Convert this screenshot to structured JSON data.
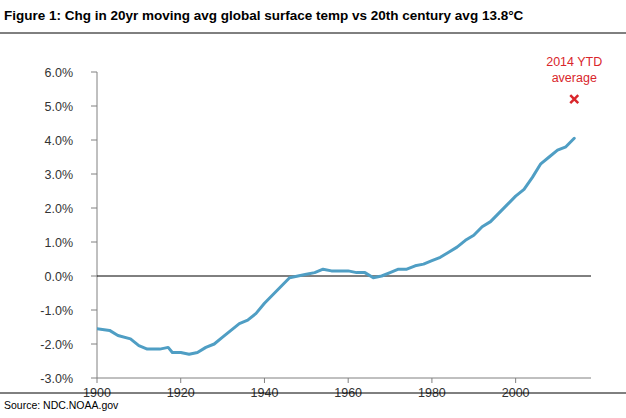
{
  "chart_data": {
    "type": "line",
    "title": "Figure 1: Chg in 20yr moving avg global surface temp vs 20th century avg 13.8°C",
    "source": "Source: NDC.NOAA.gov",
    "xlim": [
      1900,
      2018
    ],
    "xticks": [
      1900,
      1920,
      1940,
      1960,
      1980,
      2000
    ],
    "ylim": [
      -3,
      6
    ],
    "yticks": [
      {
        "value": -3,
        "label": "-3.0%"
      },
      {
        "value": -2,
        "label": "-2.0%"
      },
      {
        "value": -1,
        "label": "-1.0%"
      },
      {
        "value": 0,
        "label": "0.0%"
      },
      {
        "value": 1,
        "label": "1.0%"
      },
      {
        "value": 2,
        "label": "2.0%"
      },
      {
        "value": 3,
        "label": "3.0%"
      },
      {
        "value": 4,
        "label": "4.0%"
      },
      {
        "value": 5,
        "label": "5.0%"
      },
      {
        "value": 6,
        "label": "6.0%"
      }
    ],
    "grid": false,
    "series": [
      {
        "type": "line",
        "color": "#4f9ec4",
        "x": [
          1900,
          1903,
          1905,
          1908,
          1910,
          1912,
          1915,
          1917,
          1918,
          1920,
          1922,
          1924,
          1926,
          1928,
          1930,
          1932,
          1934,
          1936,
          1938,
          1940,
          1942,
          1944,
          1946,
          1948,
          1950,
          1952,
          1954,
          1956,
          1958,
          1960,
          1962,
          1964,
          1966,
          1968,
          1970,
          1972,
          1974,
          1976,
          1978,
          1980,
          1982,
          1984,
          1986,
          1988,
          1990,
          1992,
          1994,
          1996,
          1998,
          2000,
          2002,
          2004,
          2006,
          2008,
          2010,
          2012,
          2014
        ],
        "values": [
          -1.55,
          -1.6,
          -1.75,
          -1.85,
          -2.05,
          -2.15,
          -2.15,
          -2.1,
          -2.25,
          -2.25,
          -2.3,
          -2.25,
          -2.1,
          -2.0,
          -1.8,
          -1.6,
          -1.4,
          -1.3,
          -1.1,
          -0.8,
          -0.55,
          -0.3,
          -0.05,
          0.0,
          0.05,
          0.1,
          0.2,
          0.15,
          0.15,
          0.15,
          0.1,
          0.1,
          -0.05,
          0.0,
          0.1,
          0.2,
          0.2,
          0.3,
          0.35,
          0.45,
          0.55,
          0.7,
          0.85,
          1.05,
          1.2,
          1.45,
          1.6,
          1.85,
          2.1,
          2.35,
          2.55,
          2.9,
          3.3,
          3.5,
          3.7,
          3.8,
          4.05
        ]
      },
      {
        "type": "scatter",
        "name": "2014 YTD average",
        "color": "#d9262b",
        "marker": "x",
        "x": [
          2014
        ],
        "values": [
          5.2
        ]
      }
    ]
  }
}
